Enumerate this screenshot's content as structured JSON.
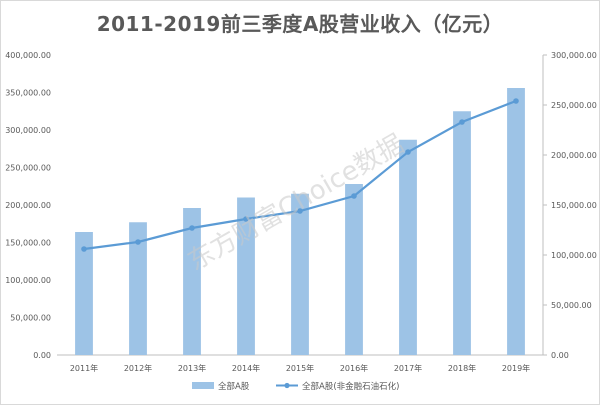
{
  "chart_data": {
    "type": "bar",
    "title": "2011-2019前三季度A股营业收入（亿元）",
    "categories": [
      "2011年",
      "2012年",
      "2013年",
      "2014年",
      "2015年",
      "2016年",
      "2017年",
      "2018年",
      "2019年"
    ],
    "series": [
      {
        "name": "全部A股",
        "type": "bar",
        "axis": "left",
        "color": "#9dc3e6",
        "values": [
          164000,
          177000,
          196000,
          210000,
          215000,
          228000,
          287000,
          325000,
          356000
        ]
      },
      {
        "name": "全部A股(非金融石油石化)",
        "type": "line",
        "axis": "right",
        "color": "#5b9bd5",
        "values": [
          106000,
          113000,
          127000,
          136000,
          144000,
          159000,
          203000,
          233000,
          254000
        ]
      }
    ],
    "y_left": {
      "lim": [
        0,
        400000
      ],
      "ticks": [
        "0.00",
        "50,000.00",
        "100,000.00",
        "150,000.00",
        "200,000.00",
        "250,000.00",
        "300,000.00",
        "350,000.00",
        "400,000.00"
      ]
    },
    "y_right": {
      "lim": [
        0,
        300000
      ],
      "ticks": [
        "0.00",
        "50,000.00",
        "100,000.00",
        "150,000.00",
        "200,000.00",
        "250,000.00",
        "300,000.00"
      ]
    },
    "grid": false,
    "legend_position": "bottom",
    "watermark": "东方财富Choice数据"
  }
}
